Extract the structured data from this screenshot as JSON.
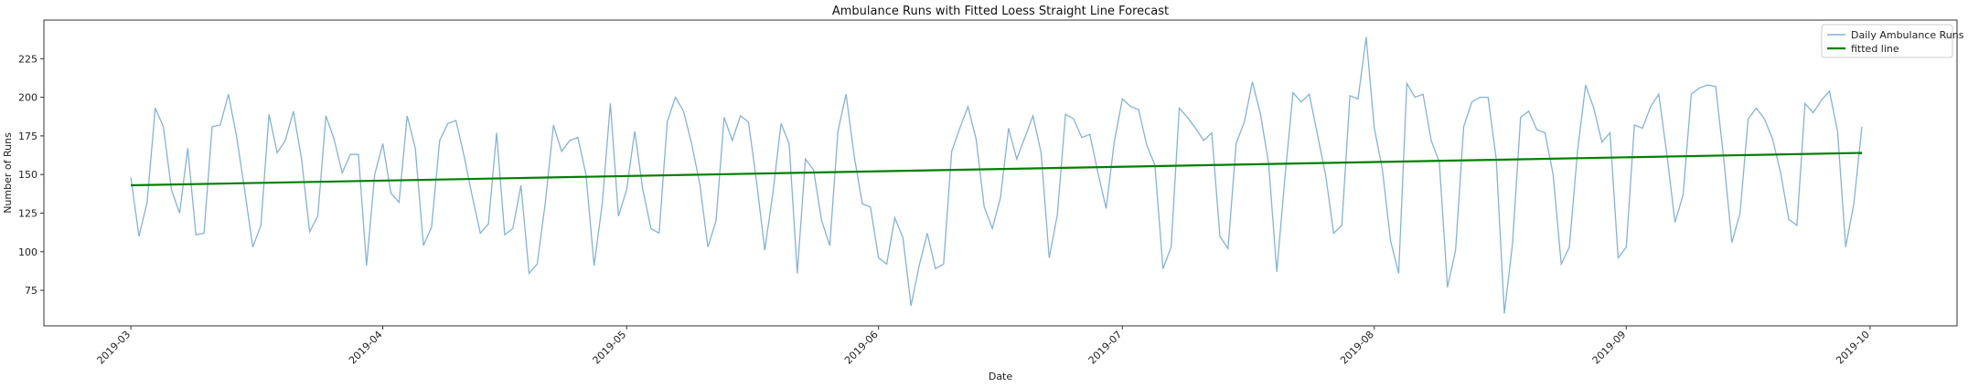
{
  "chart_data": {
    "type": "line",
    "title": "Ambulance Runs with Fitted Loess Straight Line Forecast",
    "xlabel": "Date",
    "ylabel": "Number of Runs",
    "x_start": "2019-03-01",
    "x_ticks": [
      "2019-03",
      "2019-04",
      "2019-05",
      "2019-06",
      "2019-07",
      "2019-08",
      "2019-09",
      "2019-10"
    ],
    "x_tick_days": [
      0,
      31,
      61,
      92,
      122,
      153,
      184,
      214
    ],
    "xlim": [
      -10.7,
      224.7
    ],
    "ylim": [
      52,
      250
    ],
    "y_ticks": [
      75,
      100,
      125,
      150,
      175,
      200,
      225
    ],
    "legend": {
      "placement": "upper-right",
      "entries": [
        "Daily Ambulance Runs",
        "fitted line"
      ]
    },
    "series": [
      {
        "name": "Daily Ambulance Runs",
        "color": "#1f77b4",
        "values": [
          148,
          110,
          132,
          193,
          181,
          140,
          125,
          167,
          111,
          112,
          181,
          182,
          202,
          175,
          140,
          103,
          117,
          189,
          164,
          172,
          191,
          160,
          113,
          123,
          188,
          173,
          151,
          163,
          163,
          91,
          150,
          170,
          138,
          132,
          188,
          167,
          104,
          116,
          172,
          183,
          185,
          162,
          136,
          112,
          118,
          177,
          111,
          115,
          143,
          86,
          92,
          132,
          182,
          165,
          172,
          174,
          150,
          91,
          131,
          196,
          123,
          140,
          178,
          140,
          115,
          112,
          184,
          200,
          191,
          170,
          144,
          103,
          120,
          187,
          172,
          188,
          184,
          145,
          101,
          138,
          183,
          170,
          86,
          160,
          153,
          120,
          104,
          178,
          202,
          162,
          131,
          129,
          96,
          92,
          122,
          109,
          65,
          91,
          112,
          89,
          92,
          165,
          180,
          194,
          173,
          129,
          115,
          135,
          180,
          160,
          174,
          188,
          164,
          96,
          124,
          189,
          186,
          174,
          176,
          151,
          128,
          171,
          199,
          194,
          192,
          169,
          156,
          89,
          103,
          193,
          187,
          180,
          172,
          177,
          110,
          102,
          170,
          184,
          210,
          189,
          157,
          87,
          148,
          203,
          197,
          202,
          176,
          150,
          112,
          117,
          201,
          199,
          239,
          180,
          153,
          107,
          86,
          209,
          200,
          202,
          172,
          158,
          77,
          101,
          181,
          197,
          200,
          200,
          160,
          60,
          105,
          187,
          191,
          179,
          177,
          150,
          92,
          103,
          165,
          208,
          193,
          171,
          177,
          96,
          103,
          182,
          180,
          194,
          202,
          163,
          119,
          137,
          202,
          206,
          208,
          207,
          160,
          106,
          125,
          186,
          193,
          186,
          173,
          151,
          121,
          117,
          196,
          190,
          198,
          204,
          178,
          103,
          131,
          181
        ],
        "fill_opacity_note": "translucent"
      },
      {
        "name": "fitted line",
        "color": "#008000",
        "start_value": 143,
        "end_value": 164
      }
    ]
  }
}
